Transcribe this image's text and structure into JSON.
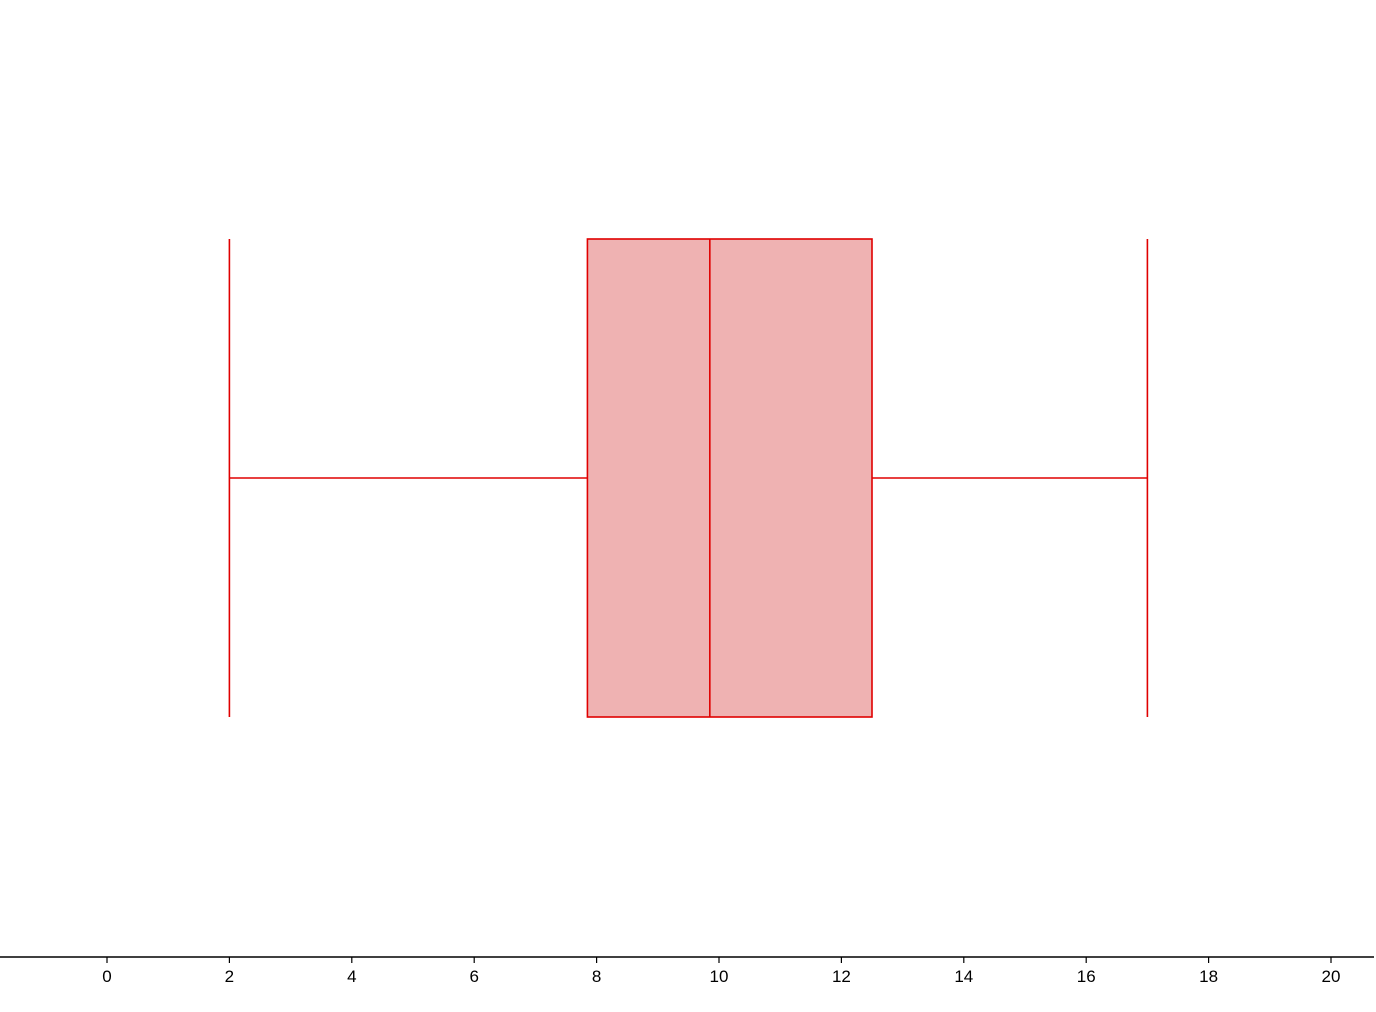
{
  "chart_data": {
    "type": "boxplot",
    "orientation": "horizontal",
    "title": "",
    "xlabel": "",
    "ylabel": "",
    "xlim": [
      -1.75,
      20.7
    ],
    "xticks": [
      0,
      2,
      4,
      6,
      8,
      10,
      12,
      14,
      16,
      18,
      20
    ],
    "grid": false,
    "legend": "none",
    "box": {
      "min": 2,
      "q1": 7.85,
      "median": 9.85,
      "q3": 12.5,
      "max": 17
    },
    "colors": {
      "line": "#e00000",
      "fill": "#efb2b2",
      "axis": "#000000"
    }
  }
}
